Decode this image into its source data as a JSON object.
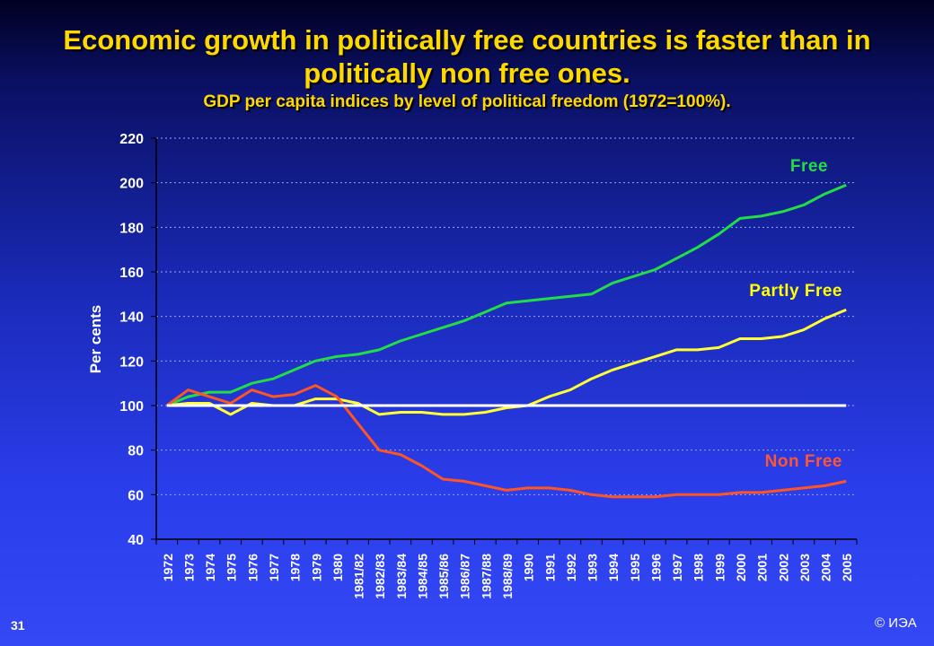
{
  "slide": {
    "title": "Economic growth in politically free countries is faster than in politically non free ones.",
    "subtitle": "GDP per capita indices by level of political freedom (1972=100%).",
    "slide_number": "31",
    "copyright": "© ИЭА"
  },
  "chart_data": {
    "type": "line",
    "ylabel": "Per cents",
    "xlabel": "",
    "ylim": [
      40,
      220
    ],
    "yticks": [
      40,
      60,
      80,
      100,
      120,
      140,
      160,
      180,
      200,
      220
    ],
    "grid": "horizontal dotted",
    "categories": [
      "1972",
      "1973",
      "1974",
      "1975",
      "1976",
      "1977",
      "1978",
      "1979",
      "1980",
      "1981/82",
      "1982/83",
      "1983/84",
      "1984/85",
      "1985/86",
      "1986/87",
      "1987/88",
      "1988/89",
      "1990",
      "1991",
      "1992",
      "1993",
      "1994",
      "1995",
      "1996",
      "1997",
      "1998",
      "1999",
      "2000",
      "2001",
      "2002",
      "2003",
      "2004",
      "2005"
    ],
    "series": [
      {
        "name": "Free",
        "label_color": "#22dd44",
        "color": "#22dd44",
        "values": [
          100,
          104,
          106,
          106,
          110,
          112,
          116,
          120,
          122,
          123,
          125,
          129,
          132,
          135,
          138,
          142,
          146,
          147,
          148,
          149,
          150,
          155,
          158,
          161,
          166,
          171,
          177,
          184,
          185,
          187,
          190,
          195,
          199
        ]
      },
      {
        "name": "Partly Free",
        "label_color": "#ffff00",
        "color": "#ffff33",
        "values": [
          100,
          101,
          101,
          96,
          101,
          100,
          100,
          103,
          103,
          101,
          96,
          97,
          97,
          96,
          96,
          97,
          99,
          100,
          104,
          107,
          112,
          116,
          119,
          122,
          125,
          125,
          126,
          130,
          130,
          131,
          134,
          139,
          143
        ]
      },
      {
        "name": "Non Free",
        "label_color": "#ff5533",
        "color": "#ff5522",
        "values": [
          100,
          107,
          104,
          101,
          107,
          104,
          105,
          109,
          104,
          92,
          80,
          78,
          73,
          67,
          66,
          64,
          62,
          63,
          63,
          62,
          60,
          59,
          59,
          59,
          60,
          60,
          60,
          61,
          61,
          62,
          63,
          64,
          66
        ]
      },
      {
        "name": "",
        "color": "#ffffff",
        "values": [
          100,
          100,
          100,
          100,
          100,
          100,
          100,
          100,
          100,
          100,
          100,
          100,
          100,
          100,
          100,
          100,
          100,
          100,
          100,
          100,
          100,
          100,
          100,
          100,
          100,
          100,
          100,
          100,
          100,
          100,
          100,
          100,
          100
        ]
      }
    ]
  }
}
